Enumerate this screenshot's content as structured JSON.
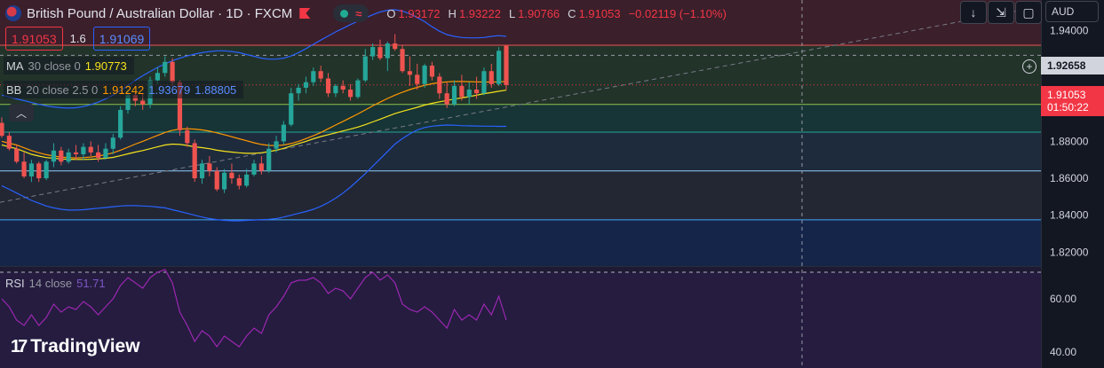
{
  "legend": {
    "symbol": "British Pound / Australian Dollar · 1D · FXCM",
    "ohlc": [
      {
        "k": "O",
        "v": "1.93172"
      },
      {
        "k": "H",
        "v": "1.93222"
      },
      {
        "k": "L",
        "v": "1.90766"
      },
      {
        "k": "C",
        "v": "1.91053"
      }
    ],
    "change": "−0.02119 (−1.10%)",
    "wave_glyph": "≈"
  },
  "quote": {
    "sell": "1.91053",
    "spread": "1.6",
    "buy": "1.91069"
  },
  "indicators": {
    "ma": {
      "name": "MA",
      "params": "30 close 0",
      "value": "1.90773",
      "color": "#f5e31b"
    },
    "bb": {
      "name": "BB",
      "params": "20 close 2.5 0",
      "basis": "1.91242",
      "upper": "1.93679",
      "lower": "1.88805",
      "basis_color": "#ff9800",
      "band_color": "#2962ff"
    },
    "rsi": {
      "name": "RSI",
      "params": "14 close",
      "value": "51.71",
      "color": "#9c27b0"
    }
  },
  "axis": {
    "currency": "AUD",
    "crosshair_price": "1.92658",
    "last_price": "1.91053",
    "countdown": "01:50:22"
  },
  "toolbar": {
    "down_glyph": "↓",
    "collapse_glyph": "⇲",
    "frame_glyph": "▢",
    "chevron_up": "︿",
    "plus_glyph": "+"
  },
  "branding": {
    "logo_mark": "17",
    "logo_text": "TradingView"
  },
  "chart_data": {
    "type": "candlestick",
    "y_range": [
      1.8125,
      1.9565
    ],
    "y_ticks": [
      1.94,
      1.92,
      1.88,
      1.86,
      1.84,
      1.82
    ],
    "y_tick_labels": [
      "1.94000",
      "1.92000",
      "1.88000",
      "1.86000",
      "1.84000",
      "1.82000"
    ],
    "rsi_range": [
      34,
      72
    ],
    "rsi_ticks": [
      60,
      40
    ],
    "rsi_tick_labels": [
      "60.00",
      "40.00"
    ],
    "rsi_band": [
      70,
      30
    ],
    "up_color": "#26a69a",
    "down_color": "#ef5350",
    "candles": [
      [
        1.89,
        1.893,
        1.882,
        1.883
      ],
      [
        1.883,
        1.885,
        1.875,
        1.876
      ],
      [
        1.876,
        1.878,
        1.868,
        1.869
      ],
      [
        1.869,
        1.874,
        1.86,
        1.861
      ],
      [
        1.861,
        1.87,
        1.858,
        1.868
      ],
      [
        1.868,
        1.869,
        1.858,
        1.86
      ],
      [
        1.86,
        1.87,
        1.859,
        1.869
      ],
      [
        1.869,
        1.879,
        1.866,
        1.875
      ],
      [
        1.875,
        1.877,
        1.867,
        1.869
      ],
      [
        1.869,
        1.876,
        1.868,
        1.874
      ],
      [
        1.874,
        1.878,
        1.87,
        1.873
      ],
      [
        1.873,
        1.879,
        1.87,
        1.877
      ],
      [
        1.877,
        1.88,
        1.872,
        1.874
      ],
      [
        1.874,
        1.878,
        1.869,
        1.871
      ],
      [
        1.871,
        1.879,
        1.87,
        1.876
      ],
      [
        1.876,
        1.884,
        1.873,
        1.882
      ],
      [
        1.882,
        1.899,
        1.881,
        1.897
      ],
      [
        1.897,
        1.908,
        1.895,
        1.905
      ],
      [
        1.905,
        1.907,
        1.899,
        1.902
      ],
      [
        1.902,
        1.906,
        1.897,
        1.9
      ],
      [
        1.9,
        1.915,
        1.898,
        1.913
      ],
      [
        1.913,
        1.92,
        1.911,
        1.917
      ],
      [
        1.917,
        1.926,
        1.915,
        1.923
      ],
      [
        1.923,
        1.925,
        1.91,
        1.912
      ],
      [
        1.912,
        1.913,
        1.883,
        1.886
      ],
      [
        1.886,
        1.888,
        1.877,
        1.879
      ],
      [
        1.879,
        1.881,
        1.858,
        1.86
      ],
      [
        1.86,
        1.87,
        1.857,
        1.868
      ],
      [
        1.868,
        1.872,
        1.861,
        1.864
      ],
      [
        1.864,
        1.866,
        1.853,
        1.854
      ],
      [
        1.854,
        1.865,
        1.852,
        1.863
      ],
      [
        1.863,
        1.868,
        1.857,
        1.86
      ],
      [
        1.86,
        1.862,
        1.854,
        1.856
      ],
      [
        1.856,
        1.865,
        1.855,
        1.862
      ],
      [
        1.862,
        1.87,
        1.861,
        1.868
      ],
      [
        1.868,
        1.872,
        1.862,
        1.864
      ],
      [
        1.864,
        1.879,
        1.863,
        1.876
      ],
      [
        1.876,
        1.883,
        1.874,
        1.88
      ],
      [
        1.88,
        1.891,
        1.878,
        1.889
      ],
      [
        1.889,
        1.909,
        1.888,
        1.906
      ],
      [
        1.906,
        1.911,
        1.902,
        1.909
      ],
      [
        1.909,
        1.915,
        1.906,
        1.912
      ],
      [
        1.912,
        1.92,
        1.91,
        1.918
      ],
      [
        1.918,
        1.921,
        1.912,
        1.914
      ],
      [
        1.914,
        1.917,
        1.904,
        1.906
      ],
      [
        1.906,
        1.911,
        1.904,
        1.91
      ],
      [
        1.91,
        1.913,
        1.906,
        1.908
      ],
      [
        1.908,
        1.911,
        1.902,
        1.904
      ],
      [
        1.904,
        1.914,
        1.903,
        1.913
      ],
      [
        1.913,
        1.93,
        1.912,
        1.926
      ],
      [
        1.926,
        1.933,
        1.924,
        1.931
      ],
      [
        1.931,
        1.935,
        1.924,
        1.925
      ],
      [
        1.925,
        1.934,
        1.918,
        1.933
      ],
      [
        1.933,
        1.938,
        1.929,
        1.93
      ],
      [
        1.93,
        1.932,
        1.917,
        1.918
      ],
      [
        1.918,
        1.926,
        1.91,
        1.916
      ],
      [
        1.916,
        1.922,
        1.908,
        1.911
      ],
      [
        1.911,
        1.922,
        1.909,
        1.921
      ],
      [
        1.921,
        1.923,
        1.913,
        1.915
      ],
      [
        1.915,
        1.917,
        1.903,
        1.906
      ],
      [
        1.906,
        1.912,
        1.898,
        1.9
      ],
      [
        1.9,
        1.913,
        1.899,
        1.91
      ],
      [
        1.91,
        1.916,
        1.902,
        1.904
      ],
      [
        1.904,
        1.912,
        1.9,
        1.908
      ],
      [
        1.908,
        1.915,
        1.903,
        1.906
      ],
      [
        1.906,
        1.92,
        1.905,
        1.918
      ],
      [
        1.918,
        1.922,
        1.909,
        1.911
      ],
      [
        1.911,
        1.931,
        1.91,
        1.929
      ],
      [
        1.9317,
        1.9322,
        1.9077,
        1.9105
      ]
    ],
    "ma30": [
      1.878,
      1.877,
      1.876,
      1.8745,
      1.873,
      1.872,
      1.8712,
      1.8708,
      1.8705,
      1.8703,
      1.8702,
      1.8702,
      1.8703,
      1.8705,
      1.8708,
      1.8713,
      1.8722,
      1.8732,
      1.8742,
      1.875,
      1.876,
      1.877,
      1.878,
      1.8785,
      1.8783,
      1.8778,
      1.877,
      1.8766,
      1.876,
      1.8752,
      1.8746,
      1.8742,
      1.8738,
      1.8735,
      1.8735,
      1.8738,
      1.8744,
      1.8752,
      1.8762,
      1.8775,
      1.8788,
      1.88,
      1.8814,
      1.8826,
      1.8836,
      1.8846,
      1.8856,
      1.8866,
      1.8877,
      1.889,
      1.8905,
      1.892,
      1.8935,
      1.895,
      1.8962,
      1.8973,
      1.8984,
      1.8996,
      1.9006,
      1.9014,
      1.9021,
      1.9029,
      1.9035,
      1.9042,
      1.905,
      1.9058,
      1.9064,
      1.9071,
      1.9077
    ],
    "bb_basis": [
      1.88,
      1.879,
      1.878,
      1.8765,
      1.875,
      1.8738,
      1.8728,
      1.872,
      1.8715,
      1.8712,
      1.871,
      1.8712,
      1.8715,
      1.872,
      1.8728,
      1.8738,
      1.8752,
      1.8768,
      1.8785,
      1.88,
      1.8816,
      1.8832,
      1.8848,
      1.886,
      1.8866,
      1.8868,
      1.8866,
      1.8862,
      1.8855,
      1.8846,
      1.8836,
      1.8825,
      1.8814,
      1.8803,
      1.8792,
      1.8783,
      1.8778,
      1.8777,
      1.878,
      1.8788,
      1.88,
      1.8815,
      1.883,
      1.8848,
      1.8868,
      1.8888,
      1.8908,
      1.8928,
      1.8948,
      1.897,
      1.8992,
      1.9012,
      1.9032,
      1.905,
      1.9066,
      1.908,
      1.9092,
      1.9103,
      1.9112,
      1.9118,
      1.9122,
      1.9124,
      1.9124,
      1.9123,
      1.9122,
      1.9121,
      1.9121,
      1.9122,
      1.9124
    ],
    "bb_upper": [
      1.905,
      1.904,
      1.903,
      1.902,
      1.901,
      1.9,
      1.8992,
      1.8986,
      1.8982,
      1.898,
      1.8982,
      1.8988,
      1.8998,
      1.9012,
      1.903,
      1.905,
      1.9075,
      1.9102,
      1.913,
      1.9155,
      1.9178,
      1.92,
      1.922,
      1.9236,
      1.925,
      1.9262,
      1.9272,
      1.928,
      1.9286,
      1.929,
      1.929,
      1.9286,
      1.928,
      1.927,
      1.926,
      1.925,
      1.9245,
      1.9245,
      1.925,
      1.9262,
      1.928,
      1.9302,
      1.9325,
      1.9348,
      1.937,
      1.9392,
      1.9412,
      1.9432,
      1.945,
      1.9468,
      1.9485,
      1.95,
      1.951,
      1.9512,
      1.9505,
      1.949,
      1.947,
      1.9448,
      1.942,
      1.9396,
      1.9378,
      1.9368,
      1.9362,
      1.936,
      1.936,
      1.9362,
      1.9368,
      1.9372,
      1.9368
    ],
    "bb_lower": [
      1.856,
      1.854,
      1.852,
      1.85,
      1.848,
      1.8465,
      1.845,
      1.844,
      1.8432,
      1.8428,
      1.8428,
      1.843,
      1.8434,
      1.8438,
      1.8442,
      1.8446,
      1.845,
      1.8452,
      1.8452,
      1.845,
      1.8448,
      1.8444,
      1.844,
      1.843,
      1.842,
      1.841,
      1.84,
      1.839,
      1.8382,
      1.8376,
      1.8372,
      1.837,
      1.837,
      1.8372,
      1.8374,
      1.8376,
      1.8378,
      1.8382,
      1.839,
      1.84,
      1.841,
      1.842,
      1.8432,
      1.8448,
      1.8468,
      1.8492,
      1.852,
      1.8552,
      1.8588,
      1.8625,
      1.8665,
      1.8705,
      1.8745,
      1.8785,
      1.8815,
      1.884,
      1.8862,
      1.8875,
      1.8882,
      1.8886,
      1.8888,
      1.8887,
      1.8885,
      1.8884,
      1.8883,
      1.8882,
      1.8882,
      1.8881,
      1.8881
    ],
    "rsi": [
      60,
      57,
      52,
      50,
      54,
      50,
      53,
      58,
      55,
      57,
      56,
      59,
      57,
      54,
      57,
      60,
      65,
      68,
      66,
      64,
      68,
      70,
      71,
      66,
      55,
      50,
      44,
      48,
      46,
      42,
      46,
      44,
      42,
      46,
      49,
      47,
      54,
      57,
      61,
      66,
      67,
      67,
      68,
      66,
      62,
      64,
      63,
      60,
      64,
      68,
      70,
      67,
      69,
      66,
      58,
      56,
      55,
      57,
      55,
      52,
      49,
      56,
      52,
      54,
      52,
      58,
      54,
      61,
      52
    ],
    "support_resistance": [
      {
        "price": 1.932,
        "color": "#ef5350"
      },
      {
        "price": 1.9,
        "color": "#8bc34a"
      },
      {
        "price": 1.885,
        "color": "#26a69a"
      },
      {
        "price": 1.864,
        "color": "#90caf9"
      },
      {
        "price": 1.8375,
        "color": "#42a5f5"
      }
    ],
    "crosshair_price": 1.92658,
    "last_price": 1.91053
  }
}
